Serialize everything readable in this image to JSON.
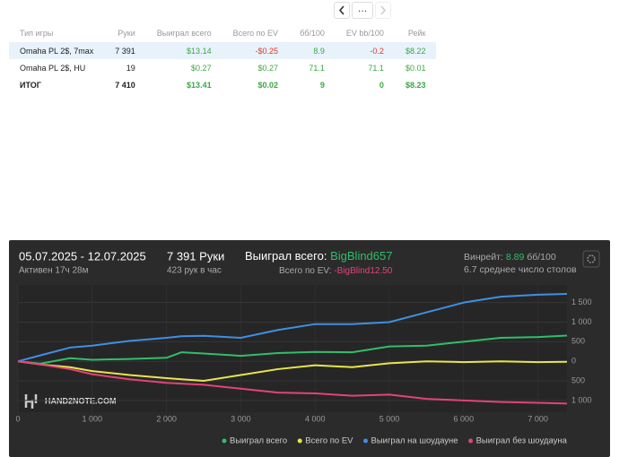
{
  "pagination": {
    "more": "…"
  },
  "table": {
    "header": [
      "Тип игры",
      "Руки",
      "Выиграл всего",
      "Всего по EV",
      "бб/100",
      "EV bb/100",
      "Рейк"
    ],
    "rows": [
      [
        "Omaha PL 2$, 7max",
        "7 391",
        "$13.14",
        "-$0.25",
        "8.9",
        "-0.2",
        "$8.22"
      ],
      [
        "Omaha PL 2$, HU",
        "19",
        "$0.27",
        "$0.27",
        "71.1",
        "71.1",
        "$0.01"
      ],
      [
        "ИТОГ",
        "7 410",
        "$13.41",
        "$0.02",
        "9",
        "0",
        "$8.23"
      ]
    ]
  },
  "chart_panel": {
    "dates": "05.07.2025 - 12.07.2025",
    "active": "Активен 17ч 28м",
    "hands": "7 391 Руки",
    "hands_per_hour": "423 рук в час",
    "won_label": "Выиграл всего:",
    "won_value": "BigBlind657",
    "ev_label": "Всего по EV:",
    "ev_value": "-BigBlind12.50",
    "winrate_label": "Винрейт:",
    "winrate_value": "8.89",
    "winrate_unit": "бб/100",
    "tables": "6.7 среднее число столов",
    "watermark": "HAND2NOTE.COM"
  },
  "chart_data": {
    "type": "line",
    "x": [
      0,
      300,
      700,
      1000,
      1500,
      2000,
      2200,
      2500,
      3000,
      3500,
      4000,
      4500,
      5000,
      5500,
      6000,
      6500,
      7000,
      7391
    ],
    "series": [
      {
        "name": "Выиграл всего",
        "color": "#2fbf6a",
        "values": [
          0,
          -60,
          80,
          40,
          60,
          90,
          230,
          200,
          140,
          210,
          240,
          230,
          380,
          400,
          500,
          600,
          620,
          657
        ]
      },
      {
        "name": "Всего по EV",
        "color": "#e8e64a",
        "values": [
          0,
          -80,
          -150,
          -250,
          -350,
          -430,
          -460,
          -500,
          -350,
          -200,
          -100,
          -150,
          -50,
          0,
          -20,
          0,
          -20,
          -12.5
        ]
      },
      {
        "name": "Выиграл на шоудауне",
        "color": "#3f8fe3",
        "values": [
          0,
          150,
          350,
          400,
          520,
          600,
          640,
          650,
          600,
          800,
          950,
          950,
          1000,
          1250,
          1500,
          1650,
          1700,
          1720
        ]
      },
      {
        "name": "Выиграл без шоудауна",
        "color": "#e2437a",
        "values": [
          0,
          -80,
          -200,
          -330,
          -460,
          -550,
          -570,
          -600,
          -700,
          -800,
          -820,
          -880,
          -850,
          -960,
          -1000,
          -1040,
          -1060,
          -1080
        ]
      }
    ],
    "xlim": [
      0,
      7391
    ],
    "ylim": [
      -1300,
      1950
    ],
    "xticks": [
      0,
      {
        "value": 1000,
        "label": "1 000"
      },
      {
        "value": 2000,
        "label": "2 000"
      },
      {
        "value": 3000,
        "label": "3 000"
      },
      {
        "value": 4000,
        "label": "4 000"
      },
      {
        "value": 5000,
        "label": "5 000"
      },
      {
        "value": 6000,
        "label": "6 000"
      },
      {
        "value": 7000,
        "label": "7 000"
      }
    ],
    "yticks": [
      {
        "value": 1500,
        "label": "1 500"
      },
      {
        "value": 1000,
        "label": "1 000"
      },
      500,
      0,
      {
        "value": -500,
        "label": "500"
      },
      {
        "value": -1000,
        "label": "1 000"
      }
    ],
    "grid": true,
    "legend": "bottom-right"
  }
}
